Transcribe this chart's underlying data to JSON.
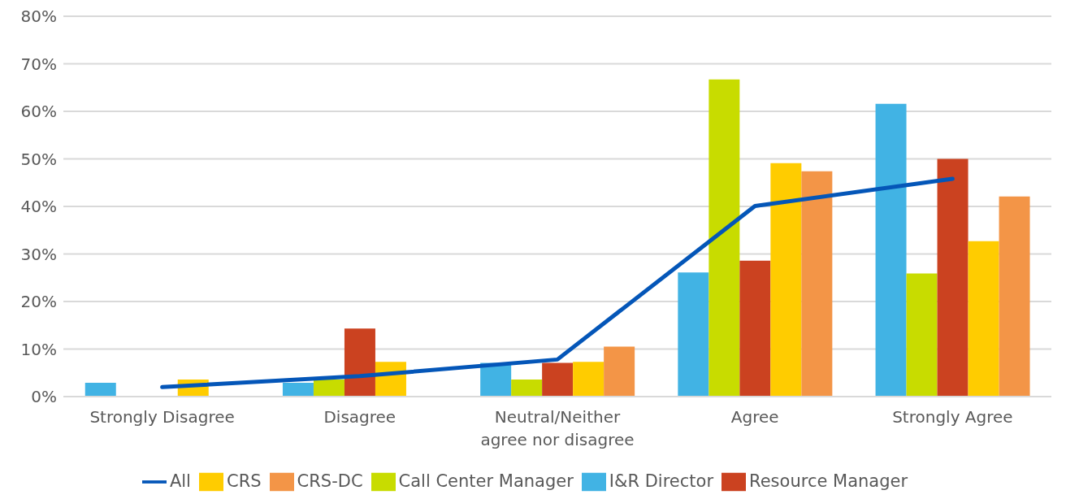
{
  "chart_data": {
    "type": "bar",
    "categories": [
      "Strongly Disagree",
      "Disagree",
      "Neutral/Neither agree nor disagree",
      "Agree",
      "Strongly Agree"
    ],
    "series": [
      {
        "name": "I&R Director",
        "color": "#41b3e4",
        "values": [
          2.9,
          2.9,
          7.1,
          26.1,
          61.6
        ]
      },
      {
        "name": "Call Center Manager",
        "color": "#c8dc00",
        "values": [
          0,
          3.6,
          3.6,
          66.7,
          25.9
        ]
      },
      {
        "name": "Resource Manager",
        "color": "#cb4220",
        "values": [
          0,
          14.3,
          7.1,
          28.6,
          50.0
        ]
      },
      {
        "name": "CRS",
        "color": "#ffcc00",
        "values": [
          3.6,
          7.3,
          7.3,
          49.1,
          32.7
        ]
      },
      {
        "name": "CRS-DC",
        "color": "#f39547",
        "values": [
          0,
          0,
          10.5,
          47.4,
          42.1
        ]
      },
      {
        "name": "All",
        "color": "#0456b8",
        "type": "line",
        "values": [
          2.0,
          4.3,
          7.8,
          40.1,
          45.8
        ]
      }
    ],
    "ylim": [
      0,
      80
    ],
    "yticks": [
      {
        "value": 0,
        "label": "0%"
      },
      {
        "value": 10,
        "label": "10%"
      },
      {
        "value": 20,
        "label": "20%"
      },
      {
        "value": 30,
        "label": "30%"
      },
      {
        "value": 40,
        "label": "40%"
      },
      {
        "value": 50,
        "label": "50%"
      },
      {
        "value": 60,
        "label": "60%"
      },
      {
        "value": 70,
        "label": "70%"
      },
      {
        "value": 80,
        "label": "80%"
      }
    ],
    "grid": "y",
    "legend": "bottom",
    "marker": "none",
    "line_style": "solid"
  }
}
